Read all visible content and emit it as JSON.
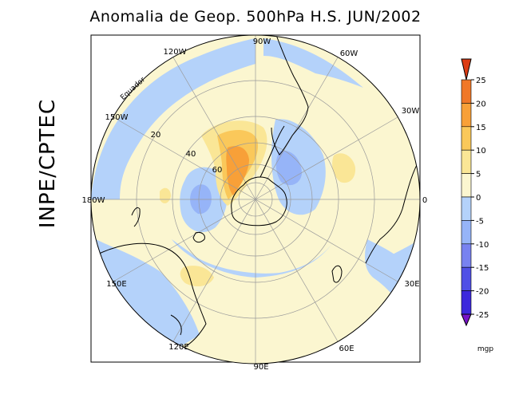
{
  "title": "Anomalia de Geop. 500hPa H.S. JUN/2002",
  "logo_text": "INPE/CPTEC",
  "map": {
    "projection": "polar stereographic",
    "hemisphere": "south",
    "equator_label": "Equador",
    "latitude_labels": [
      "20",
      "40",
      "60"
    ],
    "longitude_labels": [
      "90W",
      "60W",
      "30W",
      "0",
      "30E",
      "60E",
      "90E",
      "120E",
      "150E",
      "180W",
      "150W",
      "120W"
    ]
  },
  "colorbar": {
    "unit": "mgp",
    "ticks": [
      "25",
      "20",
      "15",
      "10",
      "5",
      "0",
      "-5",
      "-10",
      "-15",
      "-20",
      "-25"
    ],
    "colors": [
      "#dc3c14",
      "#f07828",
      "#f8a038",
      "#fac85a",
      "#fae696",
      "#fbf6d0",
      "#b4d2fa",
      "#96b4f8",
      "#7882f0",
      "#5050e6",
      "#3c28dc",
      "#7814c8"
    ]
  }
}
